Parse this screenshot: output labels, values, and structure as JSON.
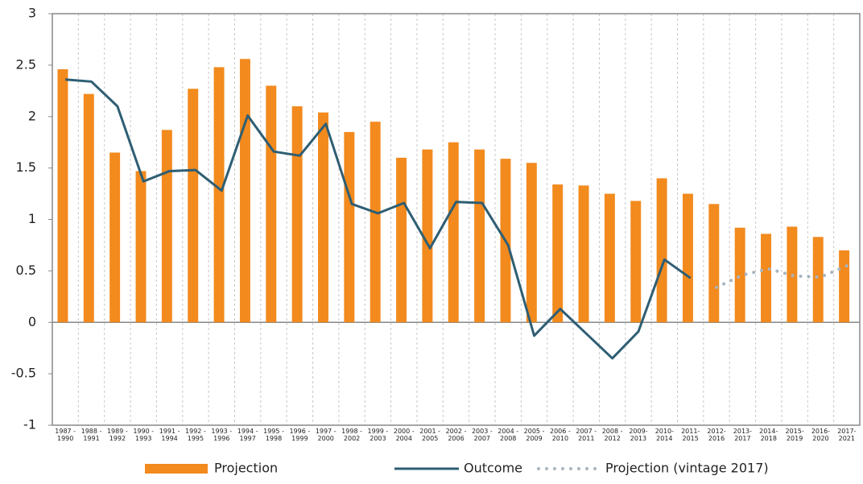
{
  "chart_data": {
    "type": "bar",
    "categories": [
      "1987 - 1990",
      "1988 - 1991",
      "1989 - 1992",
      "1990 - 1993",
      "1991 - 1994",
      "1992 - 1995",
      "1993 - 1996",
      "1994 - 1997",
      "1995 - 1998",
      "1996 - 1999",
      "1997 - 2000",
      "1998 - 2002",
      "1999 - 2003",
      "2000 - 2004",
      "2001 - 2005",
      "2002 - 2006",
      "2003 - 2007",
      "2004 - 2008",
      "2005 - 2009",
      "2006 - 2010",
      "2007 - 2011",
      "2008 - 2012",
      "2009- 2013",
      "2010- 2014",
      "2011- 2015",
      "2012- 2016",
      "2013- 2017",
      "2014- 2018",
      "2015- 2019",
      "2016- 2020",
      "2017- 2021"
    ],
    "series": [
      {
        "name": "Projection",
        "type": "bar",
        "color": "#f28a1e",
        "values": [
          2.46,
          2.22,
          1.65,
          1.47,
          1.87,
          2.27,
          2.48,
          2.56,
          2.3,
          2.1,
          2.04,
          1.85,
          1.95,
          1.6,
          1.68,
          1.75,
          1.68,
          1.59,
          1.55,
          1.34,
          1.33,
          1.25,
          1.18,
          1.4,
          1.25,
          1.15,
          0.92,
          0.86,
          0.93,
          0.83,
          0.7
        ]
      },
      {
        "name": "Outcome",
        "type": "line",
        "line_style": "solid",
        "color": "#2e5e73",
        "values": [
          2.36,
          2.34,
          2.1,
          1.37,
          1.47,
          1.48,
          1.28,
          2.01,
          1.66,
          1.62,
          1.93,
          1.15,
          1.06,
          1.16,
          0.72,
          1.17,
          1.16,
          0.75,
          -0.13,
          0.13,
          -0.11,
          -0.35,
          -0.09,
          0.61,
          0.43,
          null,
          null,
          null,
          null,
          null,
          null
        ]
      },
      {
        "name": "Projection (vintage 2017)",
        "type": "line",
        "line_style": "dotted",
        "color": "#a9b4bd",
        "values": [
          null,
          null,
          null,
          null,
          null,
          null,
          null,
          null,
          null,
          null,
          null,
          null,
          null,
          null,
          null,
          null,
          null,
          null,
          null,
          null,
          null,
          null,
          null,
          null,
          null,
          0.34,
          0.46,
          0.52,
          0.45,
          0.44,
          0.55
        ]
      }
    ],
    "ylim": [
      -1,
      3
    ],
    "yticks": [
      -1,
      -0.5,
      0,
      0.5,
      1,
      1.5,
      2,
      2.5,
      3
    ],
    "grid": true
  }
}
